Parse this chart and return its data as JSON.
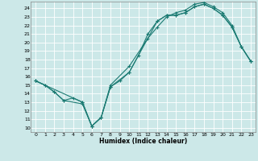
{
  "bg_color": "#cce8e8",
  "grid_color": "#b8d8d8",
  "line_color": "#1a7a72",
  "xlabel": "Humidex (Indice chaleur)",
  "xlim": [
    -0.5,
    23.5
  ],
  "ylim": [
    9.5,
    24.8
  ],
  "xticks": [
    0,
    1,
    2,
    3,
    4,
    5,
    6,
    7,
    8,
    9,
    10,
    11,
    12,
    13,
    14,
    15,
    16,
    17,
    18,
    19,
    20,
    21,
    22,
    23
  ],
  "yticks": [
    10,
    11,
    12,
    13,
    14,
    15,
    16,
    17,
    18,
    19,
    20,
    21,
    22,
    23,
    24
  ],
  "line1_x": [
    0,
    1,
    2,
    3,
    4,
    5,
    6,
    7,
    8,
    9,
    10,
    11,
    12,
    13,
    14,
    15,
    16,
    17,
    18,
    19,
    20,
    21,
    22,
    23
  ],
  "line1_y": [
    15.5,
    15.0,
    14.2,
    13.2,
    13.5,
    13.0,
    10.2,
    11.2,
    14.8,
    15.5,
    16.5,
    18.5,
    21.0,
    22.5,
    23.2,
    23.2,
    23.5,
    24.2,
    24.5,
    24.0,
    23.2,
    21.8,
    19.5,
    17.8
  ],
  "line2_x": [
    0,
    1,
    2,
    3,
    5,
    6,
    7,
    8,
    10,
    12,
    13,
    14,
    15,
    16,
    17,
    18,
    19,
    20,
    21,
    22,
    23
  ],
  "line2_y": [
    15.5,
    15.0,
    14.2,
    13.2,
    12.8,
    10.2,
    11.2,
    15.0,
    17.2,
    20.5,
    21.8,
    23.0,
    23.5,
    23.8,
    24.5,
    24.7,
    24.2,
    23.5,
    22.0,
    19.5,
    17.8
  ],
  "line3_x": [
    0,
    5,
    6,
    7,
    8,
    10,
    13,
    14,
    15,
    16,
    17,
    18,
    19,
    20,
    21,
    22,
    23
  ],
  "line3_y": [
    15.5,
    13.0,
    10.2,
    11.2,
    14.8,
    16.5,
    22.5,
    23.2,
    23.2,
    23.5,
    24.2,
    24.5,
    24.0,
    23.2,
    21.8,
    19.5,
    17.8
  ]
}
